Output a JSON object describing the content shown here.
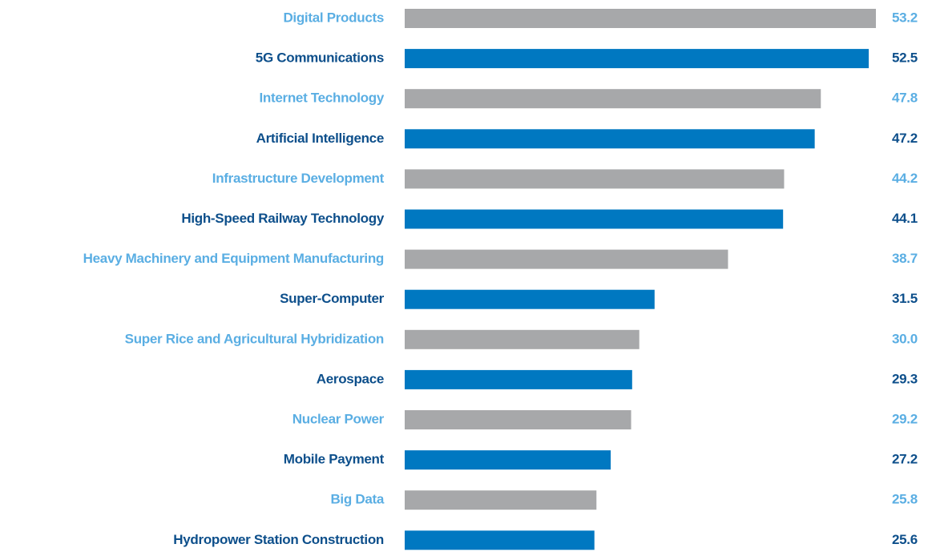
{
  "chart_data": {
    "type": "barh",
    "categories": [
      "Digital Products",
      "5G Communications",
      "Internet Technology",
      "Artificial Intelligence",
      "Infrastructure Development",
      "High-Speed Railway Technology",
      "Heavy Machinery and Equipment Manufacturing",
      "Super-Computer",
      "Super Rice and Agricultural Hybridization",
      "Aerospace",
      "Nuclear Power",
      "Mobile Payment",
      "Big Data",
      "Hydropower Station Construction"
    ],
    "values": [
      53.2,
      52.5,
      47.8,
      47.2,
      44.2,
      44.1,
      38.7,
      31.5,
      30.0,
      29.3,
      29.2,
      27.2,
      25.8,
      25.6
    ],
    "value_labels": [
      "53.2",
      "52.5",
      "47.8",
      "47.2",
      "44.2",
      "44.1",
      "38.7",
      "31.5",
      "30.0",
      "29.3",
      "29.2",
      "27.2",
      "25.8",
      "25.6"
    ],
    "colors": [
      "#a7a8aa",
      "#0078c1",
      "#a7a8aa",
      "#0078c1",
      "#a7a8aa",
      "#0078c1",
      "#a7a8aa",
      "#0078c1",
      "#a7a8aa",
      "#0078c1",
      "#a7a8aa",
      "#0078c1",
      "#a7a8aa",
      "#0078c1"
    ],
    "label_colors": [
      "#5aaee3",
      "#0d4f8b",
      "#5aaee3",
      "#0d4f8b",
      "#5aaee3",
      "#0d4f8b",
      "#5aaee3",
      "#0d4f8b",
      "#5aaee3",
      "#0d4f8b",
      "#5aaee3",
      "#0d4f8b",
      "#5aaee3",
      "#0d4f8b"
    ],
    "xlim": [
      7,
      53.2
    ],
    "grid": false
  }
}
